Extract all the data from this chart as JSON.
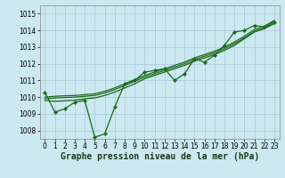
{
  "xlabel": "Graphe pression niveau de la mer (hPa)",
  "bg_color": "#cce8f0",
  "grid_color": "#a8c8d8",
  "line_color": "#1a6b1a",
  "xlim": [
    -0.5,
    23.5
  ],
  "ylim": [
    1007.5,
    1015.5
  ],
  "yticks": [
    1008,
    1009,
    1010,
    1011,
    1012,
    1013,
    1014,
    1015
  ],
  "xticks": [
    0,
    1,
    2,
    3,
    4,
    5,
    6,
    7,
    8,
    9,
    10,
    11,
    12,
    13,
    14,
    15,
    16,
    17,
    18,
    19,
    20,
    21,
    22,
    23
  ],
  "series1_x": [
    0,
    1,
    2,
    3,
    4,
    5,
    6,
    7,
    8,
    9,
    10,
    11,
    12,
    13,
    14,
    15,
    16,
    17,
    18,
    19,
    20,
    21,
    22,
    23
  ],
  "series1_y": [
    1010.3,
    1009.1,
    1009.3,
    1009.7,
    1009.8,
    1007.6,
    1007.8,
    1009.4,
    1010.8,
    1011.0,
    1011.5,
    1011.6,
    1011.7,
    1011.0,
    1011.4,
    1012.3,
    1012.1,
    1012.5,
    1013.1,
    1013.9,
    1014.0,
    1014.3,
    1014.2,
    1014.5
  ],
  "series2_x": [
    0,
    1,
    2,
    3,
    4,
    5,
    6,
    7,
    8,
    9,
    10,
    11,
    12,
    13,
    14,
    15,
    16,
    17,
    18,
    19,
    20,
    21,
    22,
    23
  ],
  "series2_y": [
    1009.8,
    1009.75,
    1009.78,
    1009.82,
    1009.9,
    1009.95,
    1010.1,
    1010.3,
    1010.55,
    1010.8,
    1011.1,
    1011.3,
    1011.5,
    1011.7,
    1011.9,
    1012.15,
    1012.35,
    1012.55,
    1012.8,
    1013.1,
    1013.5,
    1013.9,
    1014.1,
    1014.4
  ],
  "series3_x": [
    0,
    1,
    2,
    3,
    4,
    5,
    6,
    7,
    8,
    9,
    10,
    11,
    12,
    13,
    14,
    15,
    16,
    17,
    18,
    19,
    20,
    21,
    22,
    23
  ],
  "series3_y": [
    1009.9,
    1009.95,
    1009.98,
    1010.0,
    1010.05,
    1010.1,
    1010.25,
    1010.45,
    1010.7,
    1010.95,
    1011.2,
    1011.4,
    1011.6,
    1011.8,
    1012.0,
    1012.25,
    1012.45,
    1012.65,
    1012.9,
    1013.2,
    1013.55,
    1013.95,
    1014.15,
    1014.5
  ],
  "series4_x": [
    0,
    1,
    2,
    3,
    4,
    5,
    6,
    7,
    8,
    9,
    10,
    11,
    12,
    13,
    14,
    15,
    16,
    17,
    18,
    19,
    20,
    21,
    22,
    23
  ],
  "series4_y": [
    1010.0,
    1010.05,
    1010.08,
    1010.1,
    1010.15,
    1010.2,
    1010.35,
    1010.55,
    1010.8,
    1011.05,
    1011.3,
    1011.5,
    1011.7,
    1011.9,
    1012.1,
    1012.35,
    1012.55,
    1012.75,
    1013.0,
    1013.3,
    1013.65,
    1014.05,
    1014.25,
    1014.6
  ],
  "tick_fontsize": 5.5,
  "xlabel_fontsize": 7
}
